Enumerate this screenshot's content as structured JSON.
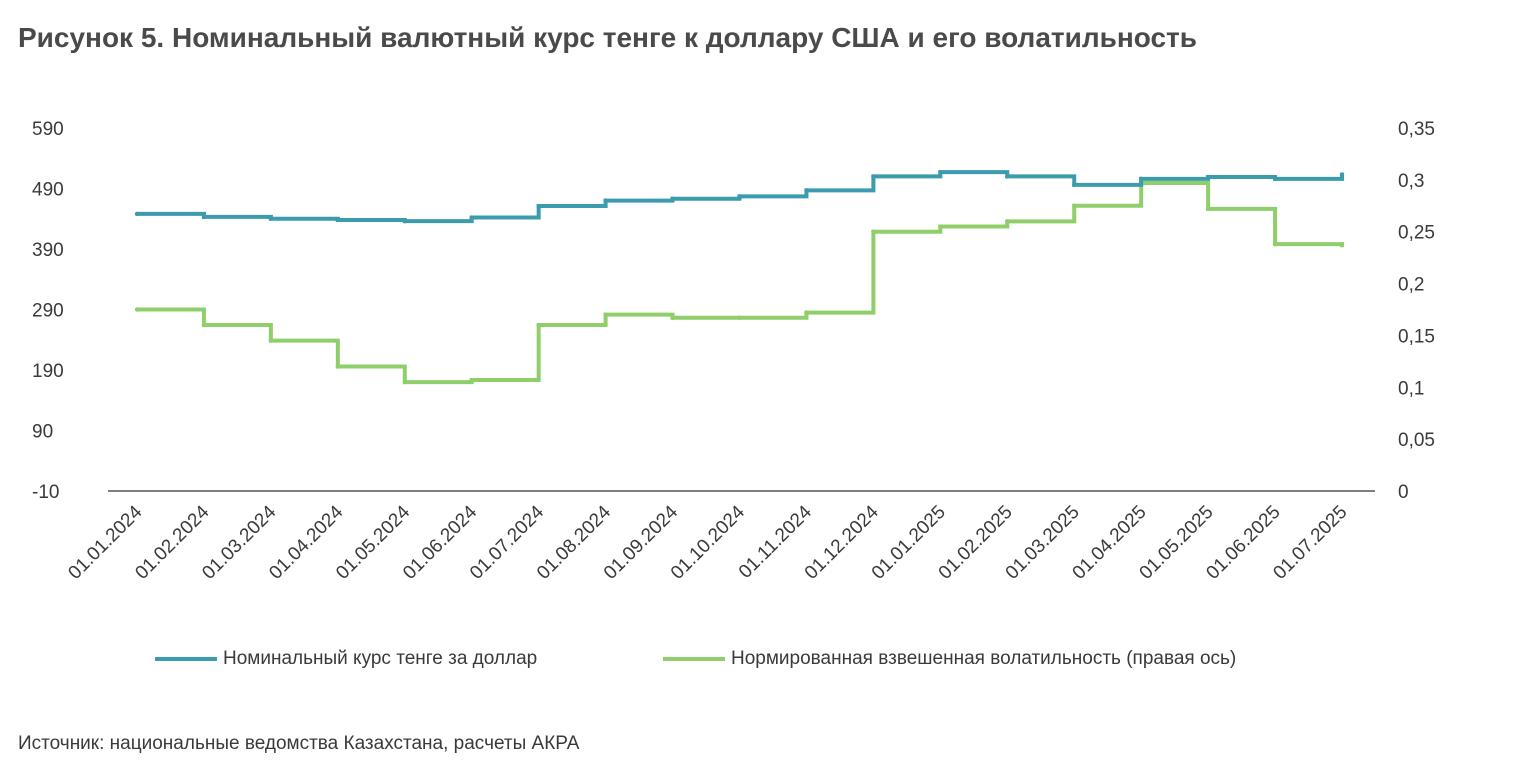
{
  "title": "Рисунок 5. Номинальный валютный курс тенге к доллару США и его волатильность",
  "source": "Источник: национальные ведомства Казахстана, расчеты АКРА",
  "colors": {
    "rate": "#3a9cad",
    "volatility": "#8fcf6b",
    "axis": "#555555",
    "text": "#3a3a3a"
  },
  "chart_data": {
    "type": "line",
    "categories": [
      "01.01.2024",
      "01.02.2024",
      "01.03.2024",
      "01.04.2024",
      "01.05.2024",
      "01.06.2024",
      "01.07.2024",
      "01.08.2024",
      "01.09.2024",
      "01.10.2024",
      "01.11.2024",
      "01.12.2024",
      "01.01.2025",
      "01.02.2025",
      "01.03.2025",
      "01.04.2025",
      "01.05.2025",
      "01.06.2025",
      "01.07.2025"
    ],
    "y_left": {
      "ylim": [
        -10,
        590
      ],
      "ticks": [
        "590",
        "490",
        "390",
        "290",
        "190",
        "90",
        "-10"
      ],
      "tick_values": [
        590,
        490,
        390,
        290,
        190,
        90,
        -10
      ]
    },
    "y_right": {
      "ylim": [
        0,
        0.35
      ],
      "ticks": [
        "0,35",
        "0,3",
        "0,25",
        "0,2",
        "0,15",
        "0,1",
        "0,05",
        "0"
      ],
      "tick_values": [
        0.35,
        0.3,
        0.25,
        0.2,
        0.15,
        0.1,
        0.05,
        0
      ]
    },
    "series": [
      {
        "name": "Номинальный курс тенге за доллар",
        "axis": "left",
        "values": [
          448,
          443,
          440,
          438,
          436,
          442,
          461,
          470,
          473,
          477,
          487,
          510,
          517,
          510,
          496,
          506,
          509,
          506,
          513
        ],
        "end_value": 516
      },
      {
        "name": "Нормированная взвешенная волатильность (правая ось)",
        "axis": "right",
        "values": [
          0.175,
          0.16,
          0.145,
          0.12,
          0.105,
          0.107,
          0.16,
          0.17,
          0.167,
          0.167,
          0.172,
          0.25,
          0.255,
          0.26,
          0.275,
          0.297,
          0.272,
          0.238,
          0.238
        ],
        "end_value": 0.235
      }
    ],
    "legend": "bottom",
    "grid": false
  }
}
